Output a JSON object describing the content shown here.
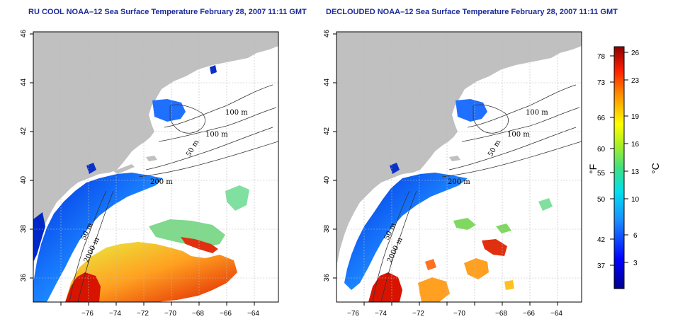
{
  "panels": [
    {
      "id": "left",
      "title": "RU COOL NOAA–12 Sea Surface Temperature February 28, 2007 11:11 GMT",
      "contour_labels": [
        "100 m",
        "100 m",
        "50 m",
        "200 m",
        "50 m",
        "2000 m"
      ]
    },
    {
      "id": "right",
      "title": "DECLOUDED NOAA–12 Sea Surface Temperature February 28, 2007 11:11 GMT",
      "contour_labels": [
        "100 m",
        "100 m",
        "50 m",
        "200 m",
        "50 m",
        "2000 m"
      ]
    }
  ],
  "axes": {
    "x_ticks": [
      "−76",
      "−74",
      "−72",
      "−70",
      "−68",
      "−66",
      "−64"
    ],
    "y_ticks": [
      "36",
      "38",
      "40",
      "42",
      "44",
      "46"
    ]
  },
  "colorbar": {
    "fahrenheit_ticks": [
      "78",
      "73",
      "66",
      "60",
      "55",
      "50",
      "42",
      "37"
    ],
    "celsius_ticks": [
      "26",
      "23",
      "19",
      "16",
      "13",
      "10",
      "6",
      "3"
    ],
    "fahrenheit_unit": "°F",
    "celsius_unit": "°C"
  },
  "colors": {
    "title": "#1a2a9a",
    "land": "#c0c0c0",
    "warm": "#d80000",
    "cold": "#0018c0"
  }
}
